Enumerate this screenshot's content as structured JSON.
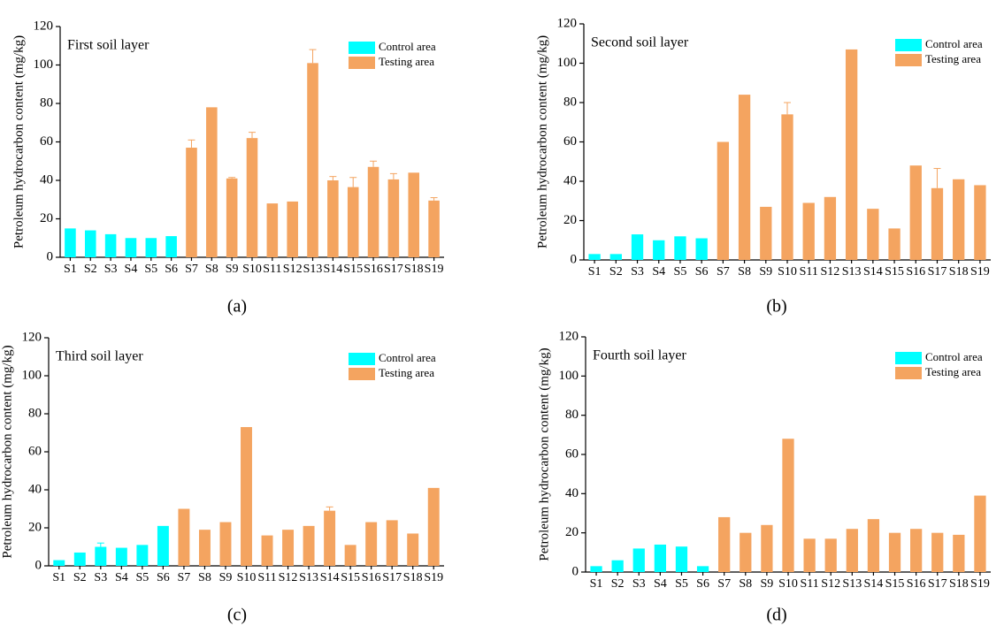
{
  "chart_data": [
    {
      "type": "bar",
      "title": "First soil layer",
      "label": "(a)",
      "ylabel": "Petroleum hydrocarbon content (mg/kg)",
      "categories": [
        "S1",
        "S2",
        "S3",
        "S4",
        "S5",
        "S6",
        "S7",
        "S8",
        "S9",
        "S10",
        "S11",
        "S12",
        "S13",
        "S14",
        "S15",
        "S16",
        "S17",
        "S18",
        "S19"
      ],
      "series": [
        {
          "name": "Control area",
          "color": "#00ffff",
          "values": [
            15,
            14,
            12,
            10,
            10,
            11,
            null,
            null,
            null,
            null,
            null,
            null,
            null,
            null,
            null,
            null,
            null,
            null,
            null
          ]
        },
        {
          "name": "Testing area",
          "color": "#f4a460",
          "values": [
            null,
            null,
            null,
            null,
            null,
            null,
            57,
            78,
            41,
            62,
            28,
            29,
            101,
            40,
            36.5,
            47,
            40.5,
            44,
            29.5
          ],
          "errors": [
            null,
            null,
            null,
            null,
            null,
            null,
            4,
            null,
            0.5,
            3,
            null,
            null,
            7,
            2,
            5,
            3,
            3,
            null,
            1.5
          ]
        }
      ],
      "ylim": [
        0,
        120
      ],
      "yticks": [
        0,
        20,
        40,
        60,
        80,
        100,
        120
      ]
    },
    {
      "type": "bar",
      "title": "Second soil layer",
      "label": "(b)",
      "ylabel": "Petroleum hydrocarbon content (mg/kg)",
      "categories": [
        "S1",
        "S2",
        "S3",
        "S4",
        "S5",
        "S6",
        "S7",
        "S8",
        "S9",
        "S10",
        "S11",
        "S12",
        "S13",
        "S14",
        "S15",
        "S16",
        "S17",
        "S18",
        "S19"
      ],
      "series": [
        {
          "name": "Control area",
          "color": "#00ffff",
          "values": [
            3,
            3,
            13,
            10,
            12,
            11,
            null,
            null,
            null,
            null,
            null,
            null,
            null,
            null,
            null,
            null,
            null,
            null,
            null
          ]
        },
        {
          "name": "Testing area",
          "color": "#f4a460",
          "values": [
            null,
            null,
            null,
            null,
            null,
            null,
            60,
            84,
            27,
            74,
            29,
            32,
            107,
            26,
            16,
            48,
            36.5,
            41,
            38
          ],
          "errors": [
            null,
            null,
            null,
            null,
            null,
            null,
            null,
            null,
            null,
            6,
            null,
            null,
            null,
            null,
            null,
            null,
            10,
            null,
            null
          ]
        }
      ],
      "ylim": [
        0,
        120
      ],
      "yticks": [
        0,
        20,
        40,
        60,
        80,
        100,
        120
      ]
    },
    {
      "type": "bar",
      "title": "Third soil layer",
      "label": "(c)",
      "ylabel": "Petroleum hydrocarbon content (mg/kg)",
      "categories": [
        "S1",
        "S2",
        "S3",
        "S4",
        "S5",
        "S6",
        "S7",
        "S8",
        "S9",
        "S10",
        "S11",
        "S12",
        "S13",
        "S14",
        "S15",
        "S16",
        "S17",
        "S18",
        "S19"
      ],
      "series": [
        {
          "name": "Control area",
          "color": "#00ffff",
          "values": [
            3,
            7,
            10,
            9.5,
            11,
            21,
            null,
            null,
            null,
            null,
            null,
            null,
            null,
            null,
            null,
            null,
            null,
            null,
            null
          ],
          "errors": [
            null,
            null,
            2,
            null,
            null,
            null,
            null,
            null,
            null,
            null,
            null,
            null,
            null,
            null,
            null,
            null,
            null,
            null,
            null
          ]
        },
        {
          "name": "Testing area",
          "color": "#f4a460",
          "values": [
            null,
            null,
            null,
            null,
            null,
            null,
            30,
            19,
            23,
            73,
            16,
            19,
            21,
            29,
            11,
            23,
            24,
            17,
            41
          ],
          "errors": [
            null,
            null,
            null,
            null,
            null,
            null,
            null,
            null,
            null,
            null,
            null,
            null,
            null,
            2,
            null,
            null,
            null,
            null,
            null
          ]
        }
      ],
      "ylim": [
        0,
        120
      ],
      "yticks": [
        0,
        20,
        40,
        60,
        80,
        100,
        120
      ]
    },
    {
      "type": "bar",
      "title": "Fourth soil layer",
      "label": "(d)",
      "ylabel": "Petroleum hydrocarbon content (mg/kg)",
      "categories": [
        "S1",
        "S2",
        "S3",
        "S4",
        "S5",
        "S6",
        "S7",
        "S8",
        "S9",
        "S10",
        "S11",
        "S12",
        "S13",
        "S14",
        "S15",
        "S16",
        "S17",
        "S18",
        "S19"
      ],
      "series": [
        {
          "name": "Control area",
          "color": "#00ffff",
          "values": [
            3,
            6,
            12,
            14,
            13,
            3,
            null,
            null,
            null,
            null,
            null,
            null,
            null,
            null,
            null,
            null,
            null,
            null,
            null
          ]
        },
        {
          "name": "Testing area",
          "color": "#f4a460",
          "values": [
            null,
            null,
            null,
            null,
            null,
            null,
            28,
            20,
            24,
            68,
            17,
            17,
            22,
            27,
            20,
            22,
            20,
            19,
            39
          ]
        }
      ],
      "ylim": [
        0,
        120
      ],
      "yticks": [
        0,
        20,
        40,
        60,
        80,
        100,
        120
      ]
    }
  ]
}
